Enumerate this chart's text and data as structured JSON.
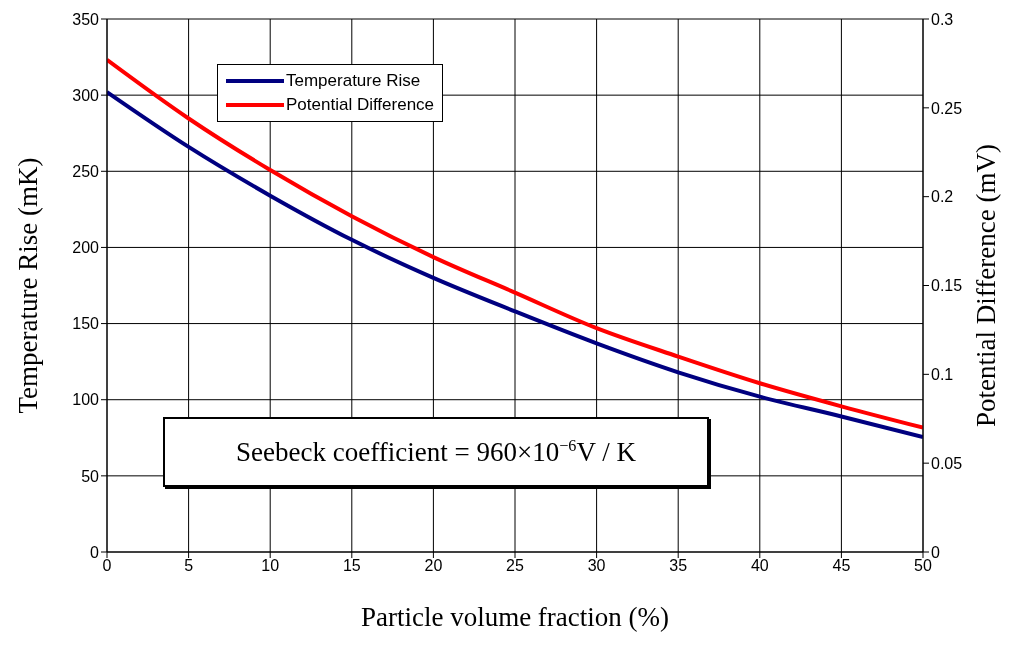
{
  "chart_data": {
    "type": "line",
    "xlabel": "Particle volume fraction (%)",
    "ylabel": "Temperature Rise (mK)",
    "y2label": "Potential Difference (mV)",
    "x": [
      0,
      5,
      10,
      15,
      20,
      25,
      30,
      35,
      40,
      45,
      50
    ],
    "series": [
      {
        "name": "Temperature Rise",
        "color": "#000080",
        "values": [
          302,
          266,
          234,
          205,
          180,
          158,
          137,
          118,
          102,
          89,
          75.5
        ]
      },
      {
        "name": "Potential Difference",
        "color": "#ff0000",
        "axis": "y2",
        "values": [
          0.277,
          0.244,
          0.215,
          0.189,
          0.166,
          0.146,
          0.126,
          0.11,
          0.095,
          0.082,
          0.07
        ]
      }
    ],
    "xlim": [
      0,
      50
    ],
    "xticks": [
      0,
      5,
      10,
      15,
      20,
      25,
      30,
      35,
      40,
      45,
      50
    ],
    "ylim": [
      0,
      350
    ],
    "yticks": [
      0,
      50,
      100,
      150,
      200,
      250,
      300,
      350
    ],
    "y2lim": [
      0,
      0.3
    ],
    "y2ticks": [
      0,
      0.05,
      0.1,
      0.15,
      0.2,
      0.25,
      0.3
    ],
    "annotations": [
      "Seebeck coefficient = 960×10$^{−6}$V / K"
    ],
    "grid": true,
    "legend": "top left",
    "marker": "none",
    "line_style": "solid"
  }
}
